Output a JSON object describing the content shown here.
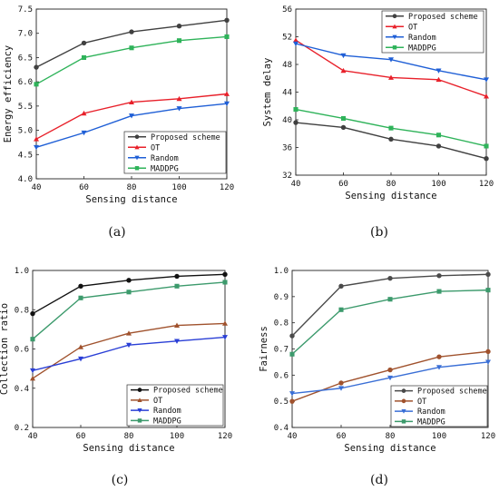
{
  "chart_data": [
    {
      "type": "line",
      "caption": "(a)",
      "xlabel": "Sensing distance",
      "ylabel": "Energy efficiency",
      "x": [
        40,
        60,
        80,
        100,
        120
      ],
      "xticks": [
        "40",
        "60",
        "80",
        "100",
        "120"
      ],
      "xlim": [
        40,
        120
      ],
      "ylim": [
        4.0,
        7.5
      ],
      "yticks": [
        "4.0",
        "4.5",
        "5.0",
        "5.5",
        "6.0",
        "6.5",
        "7.0",
        "7.5"
      ],
      "legend_position": "lower-right",
      "series": [
        {
          "name": "Proposed scheme",
          "color": "#404040",
          "marker": "circle",
          "values": [
            6.3,
            6.8,
            7.03,
            7.15,
            7.27
          ]
        },
        {
          "name": "OT",
          "color": "#e8202a",
          "marker": "triangle-up",
          "values": [
            4.82,
            5.35,
            5.58,
            5.65,
            5.75
          ]
        },
        {
          "name": "Random",
          "color": "#1f5fd6",
          "marker": "triangle-down",
          "values": [
            4.65,
            4.95,
            5.3,
            5.45,
            5.55
          ]
        },
        {
          "name": "MADDPG",
          "color": "#2fb35a",
          "marker": "square",
          "values": [
            5.95,
            6.5,
            6.7,
            6.85,
            6.93
          ]
        }
      ]
    },
    {
      "type": "line",
      "caption": "(b)",
      "xlabel": "Sensing distance",
      "ylabel": "System delay",
      "x": [
        40,
        60,
        80,
        100,
        120
      ],
      "xticks": [
        "40",
        "60",
        "80",
        "100",
        "120"
      ],
      "xlim": [
        40,
        120
      ],
      "ylim": [
        32,
        56
      ],
      "yticks": [
        "32",
        "36",
        "40",
        "44",
        "48",
        "52",
        "56"
      ],
      "legend_position": "top-right",
      "series": [
        {
          "name": "Proposed scheme",
          "color": "#404040",
          "marker": "circle",
          "values": [
            39.6,
            38.9,
            37.2,
            36.2,
            34.4
          ]
        },
        {
          "name": "OT",
          "color": "#e8202a",
          "marker": "triangle-up",
          "values": [
            51.5,
            47.1,
            46.1,
            45.8,
            43.4
          ]
        },
        {
          "name": "Random",
          "color": "#1f5fd6",
          "marker": "triangle-down",
          "values": [
            51.0,
            49.3,
            48.7,
            47.1,
            45.8
          ]
        },
        {
          "name": "MADDPG",
          "color": "#2fb35a",
          "marker": "square",
          "values": [
            41.5,
            40.2,
            38.8,
            37.8,
            36.2
          ]
        }
      ]
    },
    {
      "type": "line",
      "caption": "(c)",
      "xlabel": "Sensing distance",
      "ylabel": "Collection ratio",
      "x": [
        40,
        60,
        80,
        100,
        120
      ],
      "xticks": [
        "40",
        "60",
        "80",
        "100",
        "120"
      ],
      "xlim": [
        40,
        120
      ],
      "ylim": [
        0.2,
        1.0
      ],
      "yticks": [
        "0.2",
        "0.4",
        "0.6",
        "0.8",
        "1.0"
      ],
      "legend_position": "lower-right",
      "series": [
        {
          "name": "Proposed scheme",
          "color": "#111111",
          "marker": "circle",
          "values": [
            0.78,
            0.92,
            0.95,
            0.97,
            0.98
          ]
        },
        {
          "name": "OT",
          "color": "#a0522d",
          "marker": "triangle-up",
          "values": [
            0.45,
            0.61,
            0.68,
            0.72,
            0.73
          ]
        },
        {
          "name": "Random",
          "color": "#2a3fd6",
          "marker": "triangle-down",
          "values": [
            0.49,
            0.55,
            0.62,
            0.64,
            0.66
          ]
        },
        {
          "name": "MADDPG",
          "color": "#3c9a6c",
          "marker": "square",
          "values": [
            0.65,
            0.86,
            0.89,
            0.92,
            0.94
          ]
        }
      ]
    },
    {
      "type": "line",
      "caption": "(d)",
      "xlabel": "Sensing distance",
      "ylabel": "Fairness",
      "x": [
        40,
        60,
        80,
        100,
        120
      ],
      "xticks": [
        "40",
        "60",
        "80",
        "100",
        "120"
      ],
      "xlim": [
        40,
        120
      ],
      "ylim": [
        0.4,
        1.0
      ],
      "yticks": [
        "0.4",
        "0.5",
        "0.6",
        "0.7",
        "0.8",
        "0.9",
        "1.0"
      ],
      "legend_position": "lower-right",
      "series": [
        {
          "name": "Proposed scheme",
          "color": "#4a4a4a",
          "marker": "circle",
          "values": [
            0.75,
            0.94,
            0.97,
            0.98,
            0.985
          ]
        },
        {
          "name": "OT",
          "color": "#a0522d",
          "marker": "circle",
          "values": [
            0.5,
            0.57,
            0.62,
            0.67,
            0.69
          ]
        },
        {
          "name": "Random",
          "color": "#3a6fd6",
          "marker": "triangle-down",
          "values": [
            0.53,
            0.55,
            0.59,
            0.63,
            0.65
          ]
        },
        {
          "name": "MADDPG",
          "color": "#3c9a6c",
          "marker": "square",
          "values": [
            0.68,
            0.85,
            0.89,
            0.92,
            0.925
          ]
        }
      ]
    }
  ]
}
